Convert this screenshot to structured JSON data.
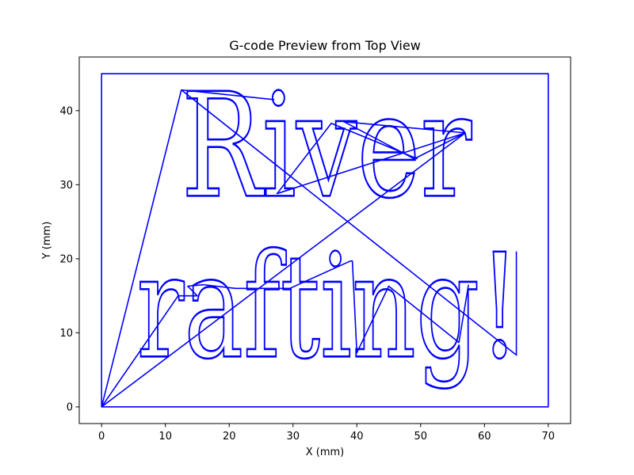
{
  "chart_data": {
    "type": "line",
    "title": "G-code Preview from Top View",
    "xlabel": "X (mm)",
    "ylabel": "Y (mm)",
    "xlim": [
      -3.5,
      73.5
    ],
    "ylim": [
      -2.25,
      47.25
    ],
    "xticks": [
      0,
      10,
      20,
      30,
      40,
      50,
      60,
      70
    ],
    "yticks": [
      0,
      10,
      20,
      30,
      40
    ],
    "grid": false,
    "line_color": "#0000ff",
    "text_lines": [
      {
        "text": "River",
        "x_start": 12.5,
        "x_end": 58,
        "baseline_y": 28.5,
        "cap_height": 14.2
      },
      {
        "text": "rafting!",
        "x_start": 5.5,
        "x_end": 65.5,
        "baseline_y": 6.8,
        "cap_height": 14.2
      }
    ],
    "series": [
      {
        "name": "",
        "color": "#0000ff",
        "x": [
          0,
          0,
          70,
          70,
          0,
          0,
          12.5,
          27,
          27,
          12.5,
          65,
          65,
          65
        ],
        "y": [
          0,
          45,
          45,
          0,
          0,
          0,
          42.8,
          41.5,
          41.5,
          42.8,
          7,
          7,
          21
        ]
      },
      {
        "name": "",
        "color": "#0000ff",
        "x": [
          0,
          57,
          38,
          49,
          57,
          27.5,
          36,
          49.5
        ],
        "y": [
          0,
          37,
          38.5,
          33.5,
          37,
          28.8,
          38.3,
          33.5
        ]
      },
      {
        "name": "",
        "color": "#0000ff",
        "x": [
          0,
          12,
          15,
          13.5,
          16,
          21,
          29.5,
          39,
          39.3,
          40,
          45,
          56,
          57.5
        ],
        "y": [
          0,
          15,
          15,
          16.3,
          16.5,
          16,
          16,
          19.7,
          19.7,
          7.3,
          16.3,
          8.7,
          16.5
        ]
      }
    ]
  }
}
